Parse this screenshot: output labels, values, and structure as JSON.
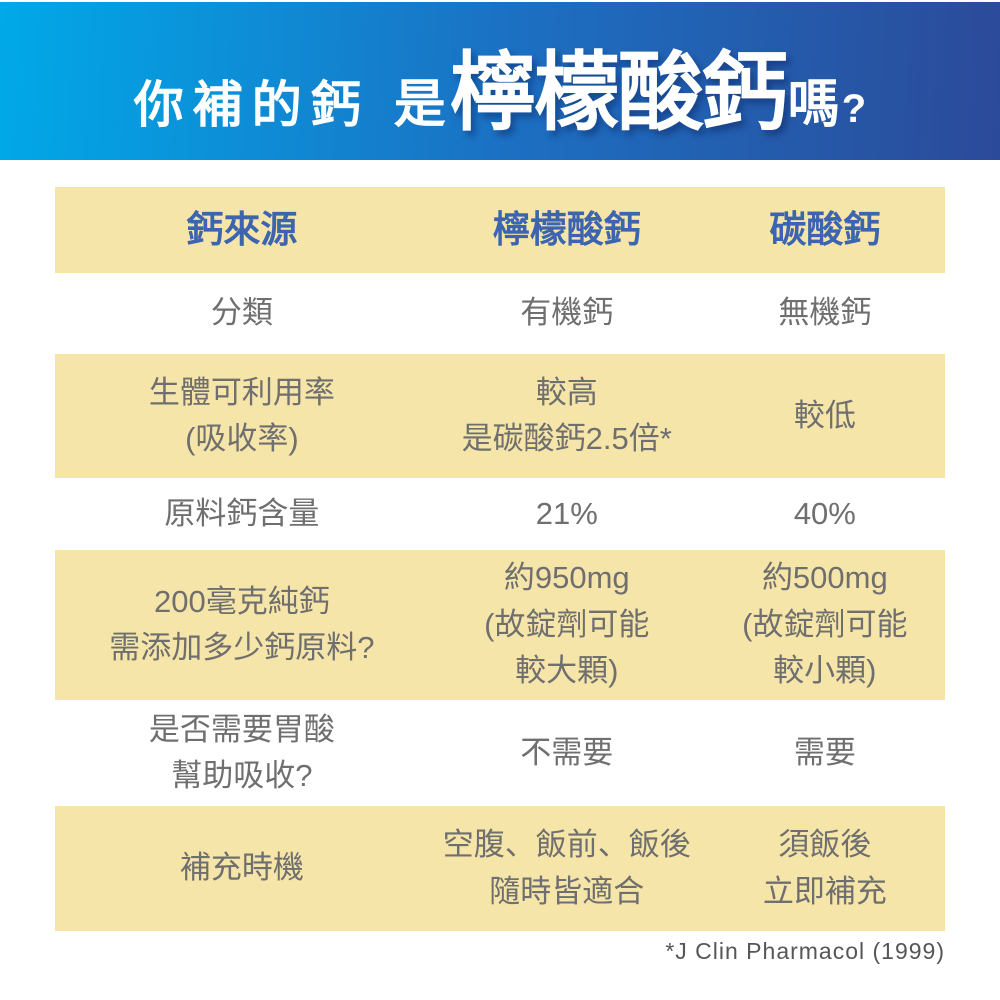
{
  "header": {
    "prefix": "你補的鈣",
    "connector": "是",
    "highlight": "檸檬酸鈣",
    "suffix": "嗎",
    "question_mark": "?"
  },
  "table": {
    "columns": [
      "鈣來源",
      "檸檬酸鈣",
      "碳酸鈣"
    ],
    "rows": [
      {
        "label": "分類",
        "citrate": "有機鈣",
        "carbonate": "無機鈣",
        "shaded": false
      },
      {
        "label": "生體可利用率\n(吸收率)",
        "citrate": "較高\n是碳酸鈣2.5倍*",
        "carbonate": "較低",
        "shaded": true
      },
      {
        "label": "原料鈣含量",
        "citrate": "21%",
        "carbonate": "40%",
        "shaded": false
      },
      {
        "label": "200毫克純鈣\n需添加多少鈣原料?",
        "citrate": "約950mg\n(故錠劑可能\n較大顆)",
        "carbonate": "約500mg\n(故錠劑可能\n較小顆)",
        "shaded": true
      },
      {
        "label": "是否需要胃酸\n幫助吸收?",
        "citrate": "不需要",
        "carbonate": "需要",
        "shaded": false
      },
      {
        "label": "補充時機",
        "citrate": "空腹、飯前、飯後\n隨時皆適合",
        "carbonate": "須飯後\n立即補充",
        "shaded": true
      }
    ]
  },
  "footnote": "*J Clin Pharmacol (1999)",
  "colors": {
    "banner_grad_left": "#00A9E8",
    "banner_grad_right": "#2C4A99",
    "banner_text": "#FFFFFF",
    "cream": "#F6E5A8",
    "table_header_text": "#3D65AF",
    "body_text": "#6F6F6F",
    "footnote_text": "#565656"
  }
}
